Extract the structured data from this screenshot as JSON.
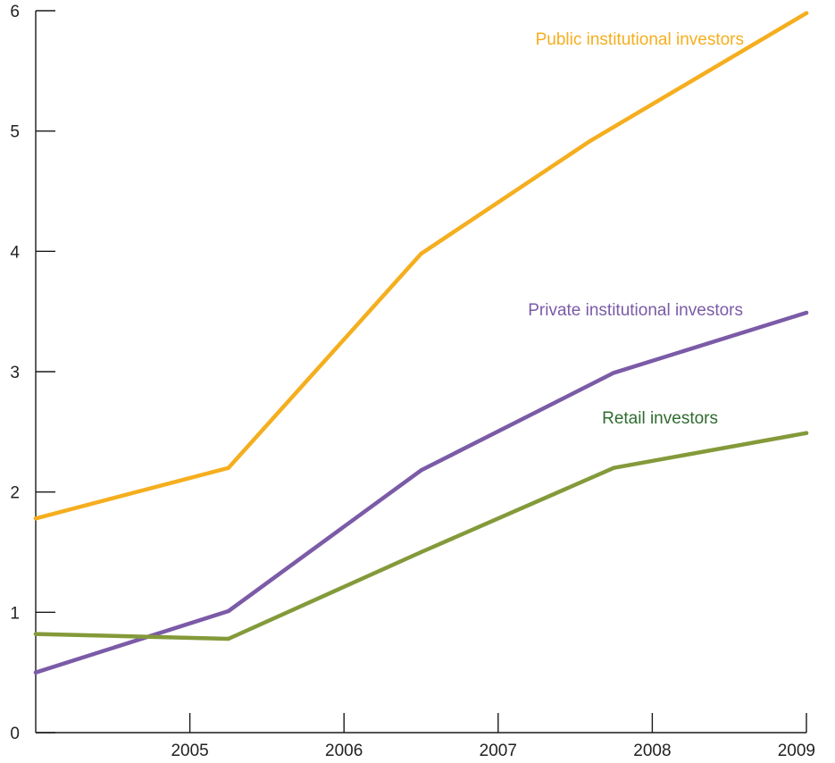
{
  "chart_data": {
    "type": "line",
    "title": "",
    "xlabel": "",
    "ylabel": "",
    "xlim": [
      2004,
      2009
    ],
    "ylim": [
      0,
      6
    ],
    "grid": false,
    "x_ticks": [
      "2005",
      "2006",
      "2007",
      "2008",
      "2009"
    ],
    "y_ticks": [
      "0",
      "1",
      "2",
      "3",
      "4",
      "5",
      "6"
    ],
    "series": [
      {
        "name": "Public institutional investors",
        "color": "#F5AE1E",
        "label_color": "#F5AE1E",
        "x": [
          2004.0,
          2005.25,
          2006.5,
          2007.6,
          2009.0
        ],
        "y": [
          1.78,
          2.2,
          3.98,
          4.92,
          5.98
        ]
      },
      {
        "name": "Private institutional investors",
        "color": "#7B5BA7",
        "label_color": "#7B5BA7",
        "x": [
          2004.0,
          2005.25,
          2006.5,
          2007.75,
          2009.0
        ],
        "y": [
          0.5,
          1.01,
          2.18,
          2.99,
          3.49
        ]
      },
      {
        "name": "Retail investors",
        "color": "#849A3A",
        "label_color": "#2F6B2F",
        "x": [
          2004.0,
          2005.25,
          2006.5,
          2007.75,
          2009.0
        ],
        "y": [
          0.82,
          0.78,
          1.5,
          2.2,
          2.49
        ]
      }
    ]
  }
}
